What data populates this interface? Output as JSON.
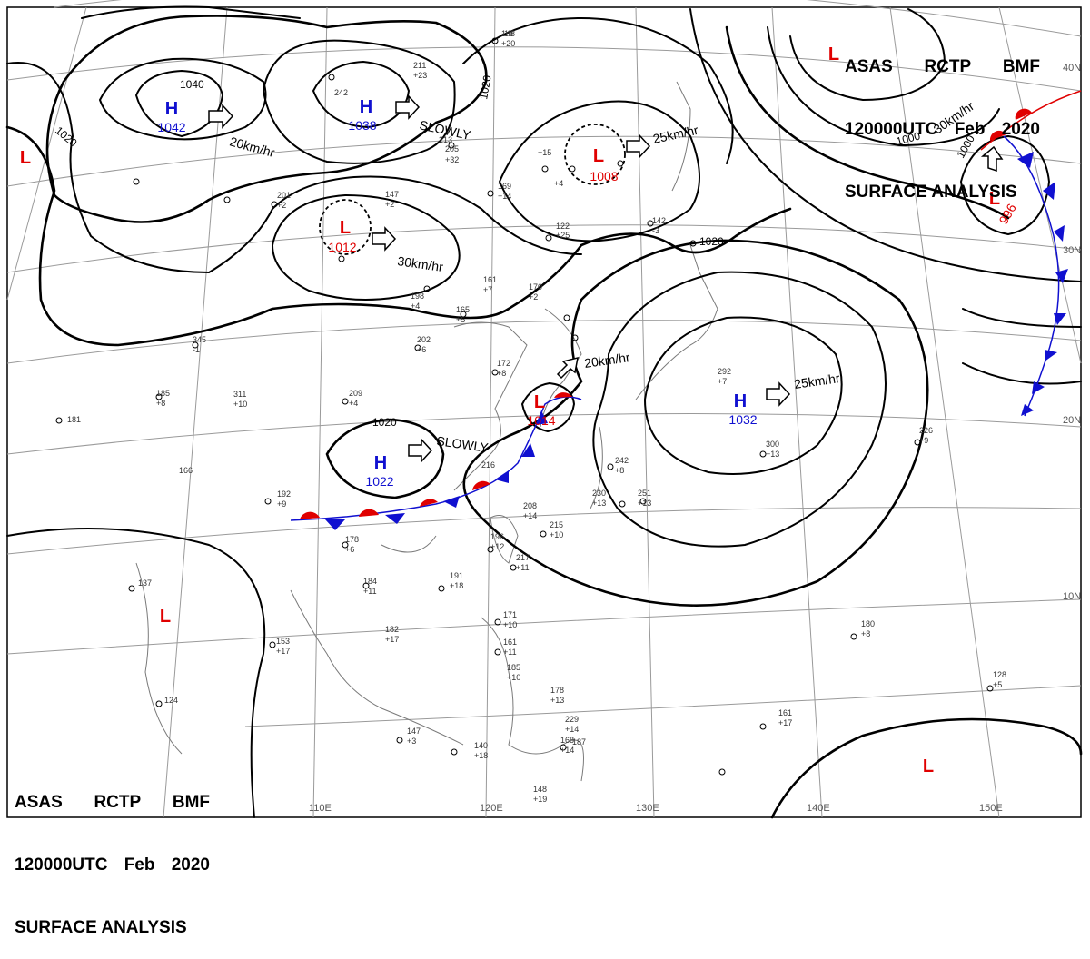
{
  "header": {
    "agency": "ASAS",
    "station": "RCTP",
    "code": "BMF",
    "time": "120000UTC",
    "month": "Feb",
    "year": "2020",
    "title": "SURFACE ANALYSIS"
  },
  "colors": {
    "high": "#1010d0",
    "low": "#e00000",
    "isobar": "#000000",
    "grid": "#9a9a9a",
    "coast": "#7a7a7a"
  },
  "grid_labels": {
    "lon": [
      "110E",
      "120E",
      "130E",
      "140E",
      "150E"
    ],
    "lat": [
      "40N",
      "30N",
      "20N",
      "10N"
    ]
  },
  "pressure_centers": [
    {
      "type": "H",
      "value": "1042"
    },
    {
      "type": "H",
      "value": "1038"
    },
    {
      "type": "H",
      "value": "1022"
    },
    {
      "type": "H",
      "value": "1032"
    },
    {
      "type": "L",
      "value": "1012"
    },
    {
      "type": "L",
      "value": "1008"
    },
    {
      "type": "L",
      "value": "1014"
    },
    {
      "type": "L",
      "value": "996"
    },
    {
      "type": "L",
      "value": ""
    },
    {
      "type": "L",
      "value": ""
    },
    {
      "type": "L",
      "value": ""
    },
    {
      "type": "L",
      "value": ""
    }
  ],
  "isobar_labels": [
    "1040",
    "1020",
    "1020",
    "1020",
    "1020",
    "1000",
    "1000"
  ],
  "motions": [
    "20km/hr",
    "SLOWLY",
    "30km/hr",
    "25km/hr",
    "20km/hr",
    "25km/hr",
    "SLOWLY",
    "30km/hr"
  ],
  "station_plots": [
    "148",
    "+20",
    "211",
    "+23",
    "242",
    "205",
    "+32",
    "213",
    "147",
    "+2",
    "201",
    "+2",
    "169",
    "+14",
    "122",
    "+25",
    "142",
    "-3",
    "161",
    "+7",
    "170",
    "+2",
    "165",
    "+5",
    "202",
    "+6",
    "198",
    "+4",
    "345",
    "-1",
    "185",
    "+8",
    "311",
    "+10",
    "209",
    "+4",
    "181",
    "172",
    "+8",
    "166",
    "216",
    "192",
    "+9",
    "178",
    "+6",
    "184",
    "+11",
    "191",
    "+18",
    "196",
    "+12",
    "217",
    "+11",
    "208",
    "+14",
    "215",
    "+10",
    "230",
    "+13",
    "242",
    "+8",
    "251",
    "+13",
    "292",
    "+7",
    "300",
    "+13",
    "226",
    "+9",
    "180",
    "+8",
    "128",
    "+5",
    "161",
    "+17",
    "168",
    "+14",
    "182",
    "+17",
    "153",
    "+17",
    "137",
    "124",
    "147",
    "+3",
    "140",
    "+18",
    "148",
    "+19",
    "171",
    "+10",
    "161",
    "+11",
    "185",
    "+10",
    "178",
    "+13",
    "229",
    "+14",
    "187",
    "+15",
    "+4",
    "-13"
  ]
}
